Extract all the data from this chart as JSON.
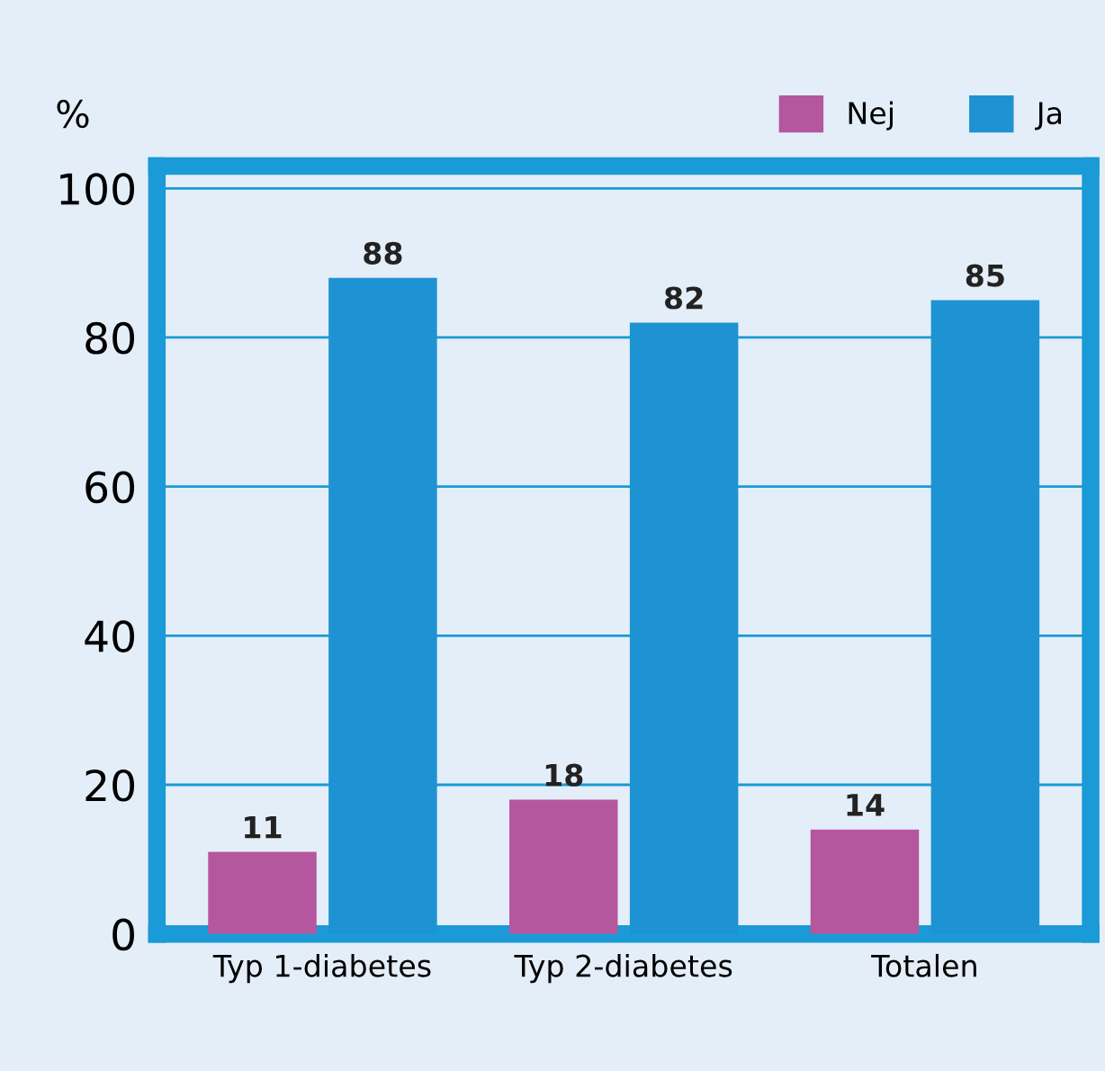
{
  "chart_data": {
    "type": "bar",
    "ylabel": "%",
    "categories": [
      "Typ 1-diabetes",
      "Typ 2-diabetes",
      "Totalen"
    ],
    "series": [
      {
        "name": "Nej",
        "color": "#b5579f",
        "values": [
          11,
          18,
          14
        ]
      },
      {
        "name": "Ja",
        "color": "#1e93d3",
        "values": [
          88,
          82,
          85
        ]
      }
    ],
    "ylim": [
      0,
      103
    ],
    "yticks": [
      0,
      20,
      40,
      60,
      80,
      100
    ],
    "grid": "y",
    "legend": "top right",
    "data_labels": true
  }
}
